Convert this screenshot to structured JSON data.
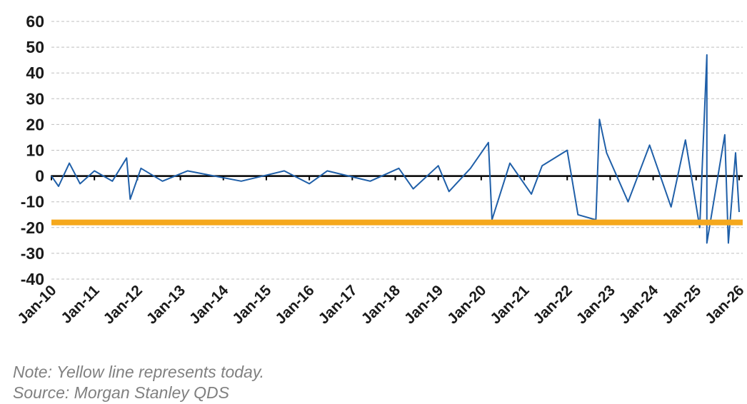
{
  "chart_data": {
    "type": "line",
    "title": "",
    "xlabel": "",
    "ylabel": "",
    "ylim": [
      -40,
      60
    ],
    "yticks": [
      60,
      50,
      40,
      30,
      20,
      10,
      0,
      -10,
      -20,
      -30,
      -40
    ],
    "xlim": [
      "2010-01",
      "2026-02"
    ],
    "xtick_labels": [
      "Jan-10",
      "Jan-11",
      "Jan-12",
      "Jan-13",
      "Jan-14",
      "Jan-15",
      "Jan-16",
      "Jan-17",
      "Jan-18",
      "Jan-19",
      "Jan-20",
      "Jan-21",
      "Jan-22",
      "Jan-23",
      "Jan-24",
      "Jan-25",
      "Jan-26"
    ],
    "grid": "horizontal dashed",
    "colors": {
      "series": "#1f5fa8",
      "reference": "#f5a81c",
      "zero_line": "#000000",
      "grid": "#bfbfbf"
    },
    "series": [
      {
        "values": [
          {
            "x": "2010-01",
            "y": 0
          },
          {
            "x": "2010-03",
            "y": -4
          },
          {
            "x": "2010-06",
            "y": 5
          },
          {
            "x": "2010-09",
            "y": -3
          },
          {
            "x": "2011-01",
            "y": 2
          },
          {
            "x": "2011-06",
            "y": -2
          },
          {
            "x": "2011-10",
            "y": 7
          },
          {
            "x": "2011-11",
            "y": -9
          },
          {
            "x": "2012-02",
            "y": 3
          },
          {
            "x": "2012-08",
            "y": -2
          },
          {
            "x": "2013-03",
            "y": 2
          },
          {
            "x": "2014-06",
            "y": -2
          },
          {
            "x": "2015-06",
            "y": 2
          },
          {
            "x": "2016-01",
            "y": -3
          },
          {
            "x": "2016-06",
            "y": 2
          },
          {
            "x": "2017-06",
            "y": -2
          },
          {
            "x": "2018-02",
            "y": 3
          },
          {
            "x": "2018-06",
            "y": -5
          },
          {
            "x": "2019-01",
            "y": 4
          },
          {
            "x": "2019-04",
            "y": -6
          },
          {
            "x": "2019-10",
            "y": 3
          },
          {
            "x": "2020-03",
            "y": 13
          },
          {
            "x": "2020-04",
            "y": -17
          },
          {
            "x": "2020-09",
            "y": 5
          },
          {
            "x": "2021-03",
            "y": -7
          },
          {
            "x": "2021-06",
            "y": 4
          },
          {
            "x": "2022-01",
            "y": 10
          },
          {
            "x": "2022-04",
            "y": -15
          },
          {
            "x": "2022-09",
            "y": -17
          },
          {
            "x": "2022-10",
            "y": 22
          },
          {
            "x": "2022-12",
            "y": 9
          },
          {
            "x": "2023-06",
            "y": -10
          },
          {
            "x": "2023-12",
            "y": 12
          },
          {
            "x": "2024-06",
            "y": -12
          },
          {
            "x": "2024-10",
            "y": 14
          },
          {
            "x": "2025-02",
            "y": -20
          },
          {
            "x": "2025-04",
            "y": 47
          },
          {
            "x": "2025-04",
            "y": -26
          },
          {
            "x": "2025-09",
            "y": 16
          },
          {
            "x": "2025-10",
            "y": -26
          },
          {
            "x": "2025-12",
            "y": 9
          },
          {
            "x": "2026-01",
            "y": -14
          }
        ]
      }
    ],
    "reference_line": {
      "y": -18
    },
    "note": "Note: Yellow line represents today.",
    "source": "Source: Morgan Stanley QDS"
  }
}
